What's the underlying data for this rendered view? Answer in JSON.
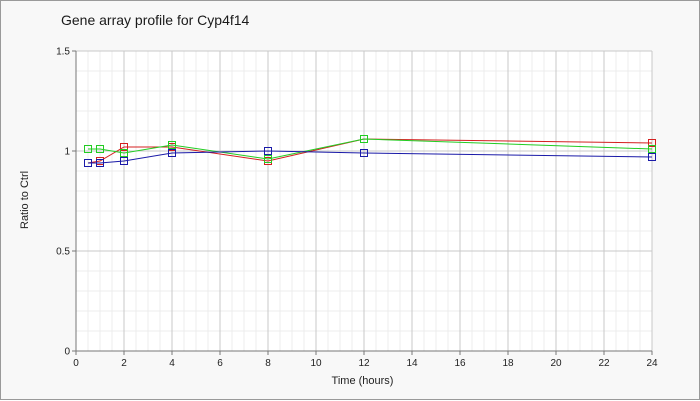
{
  "chart_data": {
    "type": "line",
    "title": "Gene array profile for Cyp4f14",
    "xlabel": "Time (hours)",
    "ylabel": "Ratio to Ctrl",
    "xlim": [
      0,
      24
    ],
    "ylim": [
      0,
      1.5
    ],
    "xticks": [
      "0",
      "2",
      "4",
      "6",
      "8",
      "10",
      "12",
      "14",
      "16",
      "18",
      "20",
      "22",
      "24"
    ],
    "yticks": [
      "0",
      "0.5",
      "1",
      "1.5"
    ],
    "grid": true,
    "series": [
      {
        "color": "#d42020",
        "x": [
          0.5,
          1,
          2,
          4,
          8,
          12,
          24
        ],
        "values": [
          0.94,
          0.95,
          1.02,
          1.02,
          0.95,
          1.06,
          1.04
        ]
      },
      {
        "color": "#22cc22",
        "x": [
          0.5,
          1,
          2,
          4,
          8,
          12,
          24
        ],
        "values": [
          1.01,
          1.01,
          0.99,
          1.03,
          0.96,
          1.06,
          1.01
        ]
      },
      {
        "color": "#1a1aa8",
        "x": [
          0.5,
          1,
          2,
          4,
          8,
          12,
          24
        ],
        "values": [
          0.94,
          0.94,
          0.95,
          0.99,
          1.0,
          0.99,
          0.97
        ]
      }
    ]
  }
}
